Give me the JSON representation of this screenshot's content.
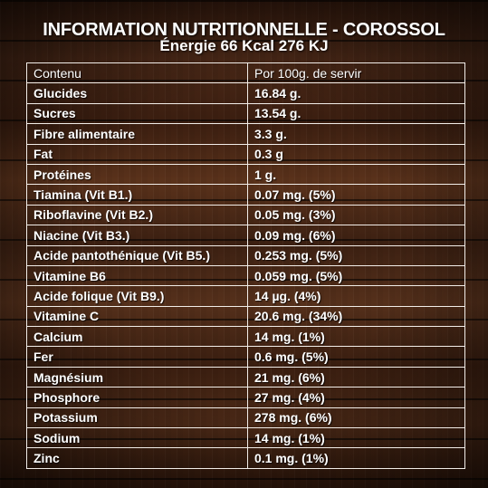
{
  "title": "INFORMATION NUTRITIONNELLE - COROSSOL",
  "subtitle": "Énergie 66 Kcal 276 KJ",
  "table": {
    "header": [
      "Contenu",
      "Por 100g. de servir"
    ],
    "rows": [
      [
        "Glucides",
        "16.84 g."
      ],
      [
        "Sucres",
        "13.54 g."
      ],
      [
        "Fibre alimentaire",
        "3.3 g."
      ],
      [
        "Fat",
        "0.3 g"
      ],
      [
        "Protéines",
        "1 g."
      ],
      [
        "Tiamina (Vit B1.)",
        "0.07 mg. (5%)"
      ],
      [
        "Riboflavine (Vit B2.)",
        "0.05 mg. (3%)"
      ],
      [
        "Niacine (Vit B3.)",
        "0.09 mg. (6%)"
      ],
      [
        "Acide pantothénique (Vit B5.)",
        "0.253 mg. (5%)"
      ],
      [
        "Vitamine B6",
        "0.059 mg. (5%)"
      ],
      [
        "Acide folique (Vit B9.)",
        "14 µg. (4%)"
      ],
      [
        "Vitamine C",
        "20.6 mg. (34%)"
      ],
      [
        "Calcium",
        "14 mg. (1%)"
      ],
      [
        "Fer",
        "0.6 mg. (5%)"
      ],
      [
        "Magnésium",
        "21 mg. (6%)"
      ],
      [
        "Phosphore",
        "27 mg. (4%)"
      ],
      [
        "Potassium",
        "278 mg. (6%)"
      ],
      [
        "Sodium",
        "14 mg. (1%)"
      ],
      [
        "Zinc",
        "0.1 mg. (1%)"
      ]
    ]
  },
  "colors": {
    "text": "#ffffff",
    "grid": "#f2ede8",
    "wood": "#3a1f12"
  }
}
